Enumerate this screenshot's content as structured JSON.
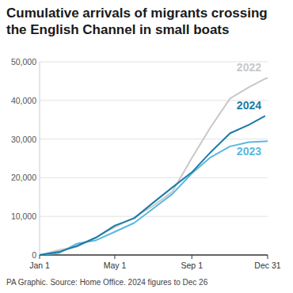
{
  "chart_data": {
    "type": "line",
    "title": "Cumulative arrivals of migrants crossing the English Channel in small boats",
    "source": "PA Graphic. Source: Home Office. 2024 figures to Dec 26",
    "x": [
      1,
      32,
      60,
      91,
      121,
      152,
      182,
      213,
      244,
      274,
      305,
      335,
      361,
      365
    ],
    "xlim": [
      1,
      365
    ],
    "xticks": [
      {
        "value": 1,
        "label": "Jan 1"
      },
      {
        "value": 121,
        "label": "May 1"
      },
      {
        "value": 244,
        "label": "Sep 1"
      },
      {
        "value": 365,
        "label": "Dec 31"
      }
    ],
    "ylim": [
      0,
      50000
    ],
    "yticks": [
      0,
      {
        "value": 10000,
        "label": "10,000"
      },
      {
        "value": 20000,
        "label": "20,000"
      },
      {
        "value": 30000,
        "label": "30,000"
      },
      {
        "value": 40000,
        "label": "40,000"
      },
      {
        "value": 50000,
        "label": "50,000"
      }
    ],
    "grid": true,
    "series": [
      {
        "name": "2022",
        "color": "#c8c8c8",
        "values": [
          0,
          1300,
          2100,
          4600,
          7200,
          9700,
          12700,
          16400,
          25100,
          33100,
          40500,
          43400,
          45600,
          45800
        ]
      },
      {
        "name": "2023",
        "color": "#5bb8de",
        "values": [
          0,
          500,
          2900,
          3800,
          6000,
          8300,
          12000,
          15800,
          21100,
          25300,
          28100,
          29200,
          29400,
          29440
        ]
      },
      {
        "name": "2024",
        "color": "#1a7ca6",
        "values": [
          0,
          800,
          2300,
          4500,
          7600,
          9500,
          13500,
          17500,
          21400,
          26600,
          31500,
          33700,
          36000,
          null
        ]
      }
    ]
  }
}
